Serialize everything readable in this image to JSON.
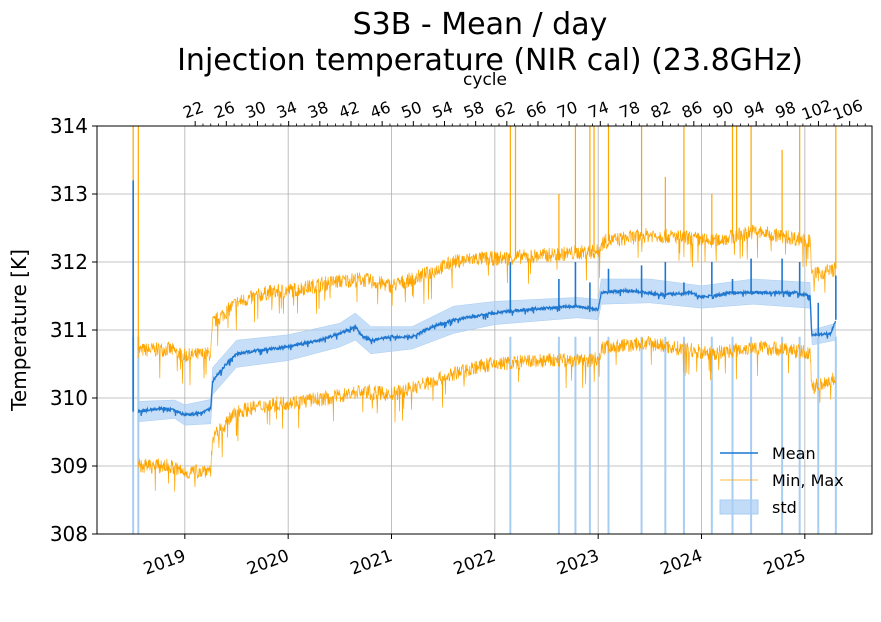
{
  "chart_data": {
    "type": "line",
    "title": "S3B - Mean / day",
    "subtitle": "Injection temperature (NIR cal) (23.8GHz)",
    "xlabel": "",
    "ylabel": "Temperature [K]",
    "x2label": "cycle",
    "ylim": [
      308,
      314
    ],
    "xlim": [
      2018.15,
      2025.65
    ],
    "yticks": [
      "308",
      "309",
      "310",
      "311",
      "312",
      "313",
      "314"
    ],
    "xticks": [
      {
        "value": 2019,
        "label": "2019"
      },
      {
        "value": 2020,
        "label": "2020"
      },
      {
        "value": 2021,
        "label": "2021"
      },
      {
        "value": 2022,
        "label": "2022"
      },
      {
        "value": 2023,
        "label": "2023"
      },
      {
        "value": 2024,
        "label": "2024"
      },
      {
        "value": 2025,
        "label": "2025"
      }
    ],
    "cycle_axis": {
      "first_cycle": 22,
      "first_x": 2019.1,
      "cycle_step": 4,
      "step_years": 0.3016,
      "labels": [
        "22",
        "26",
        "30",
        "34",
        "38",
        "42",
        "46",
        "50",
        "54",
        "58",
        "62",
        "66",
        "70",
        "74",
        "78",
        "82",
        "86",
        "90",
        "94",
        "98",
        "102",
        "106"
      ]
    },
    "grid": true,
    "legend": {
      "position": "lower-right",
      "entries": [
        {
          "label": "Mean",
          "kind": "line",
          "color": "#1f77d0"
        },
        {
          "label": "Min, Max",
          "kind": "thin-line",
          "color": "#ffa500"
        },
        {
          "label": "std",
          "kind": "patch",
          "color": "#a8cdf3"
        }
      ]
    },
    "series": [
      {
        "name": "Mean",
        "color": "#1f77d0",
        "points": [
          [
            2018.55,
            309.8
          ],
          [
            2018.75,
            309.85
          ],
          [
            2018.9,
            309.82
          ],
          [
            2019.0,
            309.75
          ],
          [
            2019.15,
            309.78
          ],
          [
            2019.25,
            309.85
          ],
          [
            2019.27,
            310.25
          ],
          [
            2019.4,
            310.5
          ],
          [
            2019.5,
            310.65
          ],
          [
            2019.7,
            310.7
          ],
          [
            2020.0,
            310.75
          ],
          [
            2020.3,
            310.85
          ],
          [
            2020.5,
            310.95
          ],
          [
            2020.65,
            311.05
          ],
          [
            2020.72,
            310.9
          ],
          [
            2020.8,
            310.85
          ],
          [
            2021.0,
            310.9
          ],
          [
            2021.2,
            310.9
          ],
          [
            2021.4,
            311.05
          ],
          [
            2021.6,
            311.15
          ],
          [
            2021.8,
            311.2
          ],
          [
            2022.0,
            311.25
          ],
          [
            2022.3,
            311.3
          ],
          [
            2022.6,
            311.33
          ],
          [
            2022.8,
            311.35
          ],
          [
            2023.0,
            311.3
          ],
          [
            2023.03,
            311.55
          ],
          [
            2023.3,
            311.58
          ],
          [
            2023.6,
            311.52
          ],
          [
            2023.9,
            311.55
          ],
          [
            2024.0,
            311.48
          ],
          [
            2024.3,
            311.55
          ],
          [
            2024.6,
            311.55
          ],
          [
            2024.9,
            311.55
          ],
          [
            2025.05,
            311.5
          ],
          [
            2025.07,
            310.92
          ],
          [
            2025.25,
            310.95
          ],
          [
            2025.3,
            311.15
          ]
        ],
        "spikes": [
          [
            2018.5,
            313.2
          ],
          [
            2022.15,
            312.0
          ],
          [
            2022.62,
            311.75
          ],
          [
            2022.78,
            312.0
          ],
          [
            2022.92,
            311.7
          ],
          [
            2023.1,
            311.9
          ],
          [
            2023.42,
            311.95
          ],
          [
            2023.65,
            312.0
          ],
          [
            2023.83,
            311.7
          ],
          [
            2024.1,
            312.0
          ],
          [
            2024.3,
            311.75
          ],
          [
            2024.48,
            312.05
          ],
          [
            2024.78,
            312.05
          ],
          [
            2024.95,
            312.0
          ],
          [
            2025.13,
            311.4
          ],
          [
            2025.3,
            311.8
          ]
        ]
      },
      {
        "name": "Min, Max",
        "color": "#ffa500",
        "max": [
          [
            2018.55,
            310.7
          ],
          [
            2018.85,
            310.72
          ],
          [
            2019.0,
            310.62
          ],
          [
            2019.25,
            310.65
          ],
          [
            2019.27,
            311.1
          ],
          [
            2019.5,
            311.4
          ],
          [
            2019.8,
            311.55
          ],
          [
            2020.1,
            311.6
          ],
          [
            2020.4,
            311.7
          ],
          [
            2020.7,
            311.75
          ],
          [
            2021.0,
            311.65
          ],
          [
            2021.3,
            311.8
          ],
          [
            2021.6,
            312.0
          ],
          [
            2021.8,
            312.05
          ],
          [
            2022.0,
            312.05
          ],
          [
            2022.5,
            312.1
          ],
          [
            2022.9,
            312.15
          ],
          [
            2023.0,
            312.15
          ],
          [
            2023.05,
            312.3
          ],
          [
            2023.5,
            312.4
          ],
          [
            2023.9,
            312.35
          ],
          [
            2024.1,
            312.3
          ],
          [
            2024.5,
            312.45
          ],
          [
            2024.9,
            312.35
          ],
          [
            2025.05,
            312.3
          ],
          [
            2025.07,
            311.8
          ],
          [
            2025.3,
            311.9
          ]
        ],
        "min": [
          [
            2018.55,
            309.0
          ],
          [
            2018.85,
            309.0
          ],
          [
            2019.0,
            308.9
          ],
          [
            2019.25,
            308.95
          ],
          [
            2019.27,
            309.4
          ],
          [
            2019.5,
            309.8
          ],
          [
            2019.8,
            309.9
          ],
          [
            2020.1,
            309.95
          ],
          [
            2020.4,
            310.0
          ],
          [
            2020.7,
            310.1
          ],
          [
            2021.0,
            310.05
          ],
          [
            2021.3,
            310.2
          ],
          [
            2021.6,
            310.35
          ],
          [
            2021.8,
            310.45
          ],
          [
            2022.0,
            310.5
          ],
          [
            2022.5,
            310.55
          ],
          [
            2022.9,
            310.55
          ],
          [
            2023.0,
            310.6
          ],
          [
            2023.05,
            310.75
          ],
          [
            2023.5,
            310.8
          ],
          [
            2023.9,
            310.7
          ],
          [
            2024.1,
            310.65
          ],
          [
            2024.5,
            310.75
          ],
          [
            2024.9,
            310.7
          ],
          [
            2025.05,
            310.65
          ],
          [
            2025.07,
            310.15
          ],
          [
            2025.3,
            310.3
          ]
        ],
        "spikes": [
          [
            2018.5,
            314.0
          ],
          [
            2018.55,
            314.0
          ],
          [
            2022.15,
            314.0
          ],
          [
            2022.2,
            314.0
          ],
          [
            2022.62,
            313.0
          ],
          [
            2022.78,
            314.0
          ],
          [
            2022.92,
            314.0
          ],
          [
            2022.96,
            314.0
          ],
          [
            2023.1,
            314.0
          ],
          [
            2023.42,
            314.0
          ],
          [
            2023.65,
            313.25
          ],
          [
            2023.83,
            314.0
          ],
          [
            2024.1,
            313.0
          ],
          [
            2024.3,
            314.0
          ],
          [
            2024.34,
            314.0
          ],
          [
            2024.48,
            314.0
          ],
          [
            2024.78,
            313.65
          ],
          [
            2024.95,
            314.0
          ],
          [
            2025.3,
            314.0
          ]
        ]
      },
      {
        "name": "std",
        "color": "#a8cdf3",
        "upper": [
          [
            2018.55,
            309.95
          ],
          [
            2018.9,
            309.97
          ],
          [
            2019.0,
            309.9
          ],
          [
            2019.25,
            309.98
          ],
          [
            2019.27,
            310.45
          ],
          [
            2019.5,
            310.85
          ],
          [
            2020.0,
            310.93
          ],
          [
            2020.5,
            311.1
          ],
          [
            2020.65,
            311.25
          ],
          [
            2020.8,
            311.05
          ],
          [
            2021.2,
            311.05
          ],
          [
            2021.6,
            311.35
          ],
          [
            2022.0,
            311.42
          ],
          [
            2022.8,
            311.48
          ],
          [
            2023.0,
            311.45
          ],
          [
            2023.03,
            311.75
          ],
          [
            2023.5,
            311.75
          ],
          [
            2024.0,
            311.65
          ],
          [
            2024.5,
            311.75
          ],
          [
            2025.05,
            311.7
          ],
          [
            2025.07,
            311.0
          ],
          [
            2025.3,
            311.1
          ]
        ],
        "lower": [
          [
            2018.55,
            309.65
          ],
          [
            2018.9,
            309.7
          ],
          [
            2019.0,
            309.6
          ],
          [
            2019.25,
            309.62
          ],
          [
            2019.27,
            310.05
          ],
          [
            2019.5,
            310.45
          ],
          [
            2020.0,
            310.55
          ],
          [
            2020.5,
            310.75
          ],
          [
            2020.65,
            310.85
          ],
          [
            2020.8,
            310.65
          ],
          [
            2021.2,
            310.72
          ],
          [
            2021.6,
            310.95
          ],
          [
            2022.0,
            311.08
          ],
          [
            2022.8,
            311.18
          ],
          [
            2023.0,
            311.15
          ],
          [
            2023.03,
            311.38
          ],
          [
            2023.5,
            311.4
          ],
          [
            2024.0,
            311.32
          ],
          [
            2024.5,
            311.38
          ],
          [
            2025.05,
            311.32
          ],
          [
            2025.07,
            310.78
          ],
          [
            2025.3,
            310.85
          ]
        ],
        "drops": [
          [
            2018.5,
            308.0
          ],
          [
            2018.55,
            308.0
          ],
          [
            2022.15,
            308.0
          ],
          [
            2022.62,
            308.0
          ],
          [
            2022.78,
            308.0
          ],
          [
            2022.92,
            308.0
          ],
          [
            2023.1,
            308.0
          ],
          [
            2023.42,
            308.0
          ],
          [
            2023.65,
            308.0
          ],
          [
            2023.83,
            308.0
          ],
          [
            2024.1,
            308.0
          ],
          [
            2024.3,
            308.0
          ],
          [
            2024.48,
            308.0
          ],
          [
            2024.78,
            308.0
          ],
          [
            2024.95,
            308.0
          ],
          [
            2025.13,
            308.0
          ],
          [
            2025.3,
            308.0
          ]
        ]
      }
    ]
  }
}
